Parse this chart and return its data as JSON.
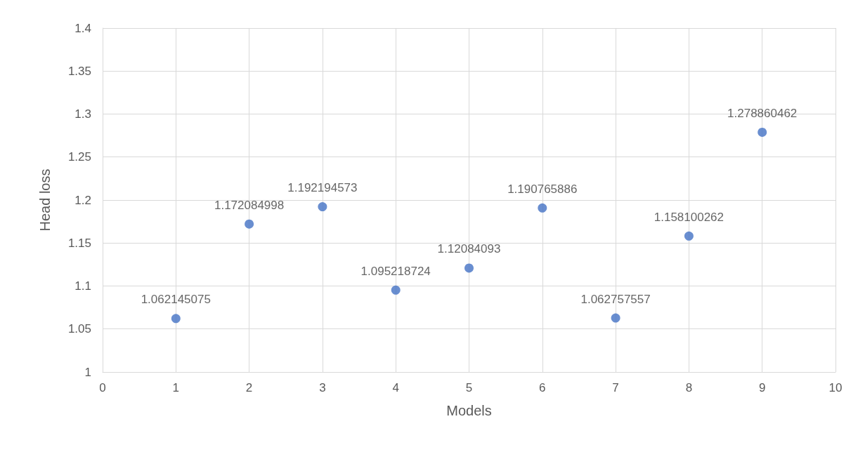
{
  "chart_data": {
    "type": "scatter",
    "xlabel": "Models",
    "ylabel": "Head loss",
    "x": [
      1,
      2,
      3,
      4,
      5,
      6,
      7,
      8,
      9
    ],
    "values": [
      1.062145075,
      1.172084998,
      1.192194573,
      1.095218724,
      1.12084093,
      1.190765886,
      1.062757557,
      1.158100262,
      1.278860462
    ],
    "color": "#4472c4",
    "data_labels": true,
    "marker": "circle",
    "grid": true,
    "xlim": [
      0,
      10
    ],
    "xticks": [
      0,
      1,
      2,
      3,
      4,
      5,
      6,
      7,
      8,
      9,
      10
    ],
    "ylim": [
      1,
      1.4
    ],
    "yticks": [
      1,
      1.05,
      1.1,
      1.15,
      1.2,
      1.25,
      1.3,
      1.35,
      1.4
    ]
  }
}
